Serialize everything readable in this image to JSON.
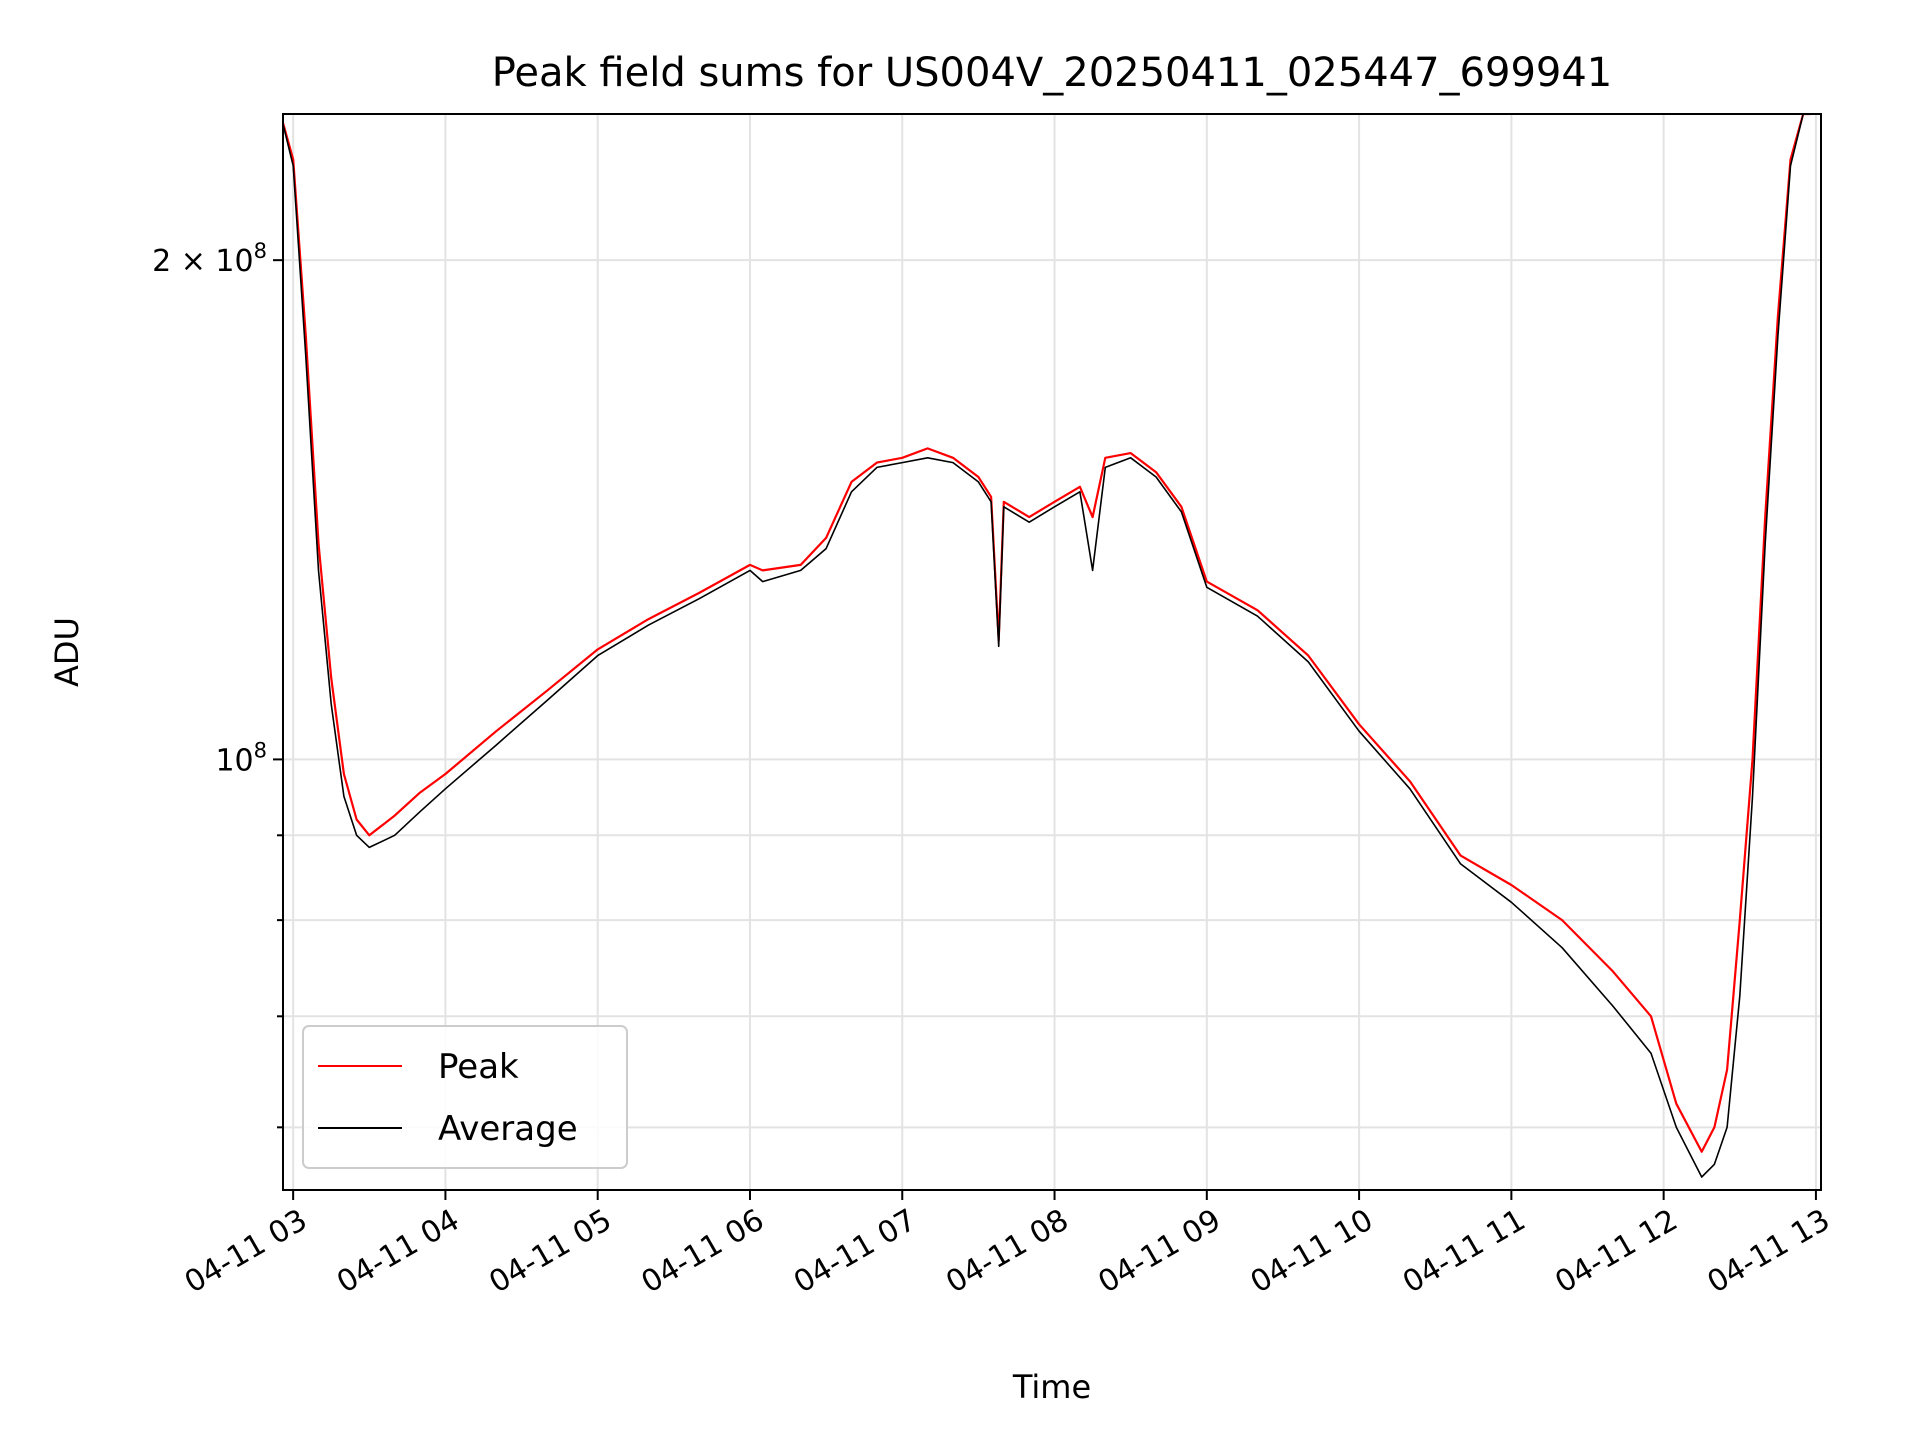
{
  "chart_data": {
    "type": "line",
    "title": "Peak field sums for US004V_20250411_025447_699941",
    "xlabel": "Time",
    "ylabel": "ADU",
    "x_ticks": [
      "04-11 03",
      "04-11 04",
      "04-11 05",
      "04-11 06",
      "04-11 07",
      "04-11 08",
      "04-11 09",
      "04-11 10",
      "04-11 11",
      "04-11 12",
      "04-11 13"
    ],
    "y_ticks": [
      {
        "value": 200000000,
        "base": "2 × 10",
        "exp": "8"
      },
      {
        "value": 100000000,
        "base": "10",
        "exp": "8"
      }
    ],
    "y_scale": "log",
    "ylim": [
      55000000,
      245000000
    ],
    "xlim": [
      "2025-04-11 02:56",
      "2025-04-11 13:02"
    ],
    "grid": true,
    "legend_position": "lower-left",
    "colors": {
      "Peak": "#ff0000",
      "Average": "#000000"
    },
    "series": [
      {
        "name": "Peak",
        "x": [
          "2025-04-11 02:55",
          "2025-04-11 03:00",
          "2025-04-11 03:05",
          "2025-04-11 03:10",
          "2025-04-11 03:15",
          "2025-04-11 03:20",
          "2025-04-11 03:25",
          "2025-04-11 03:30",
          "2025-04-11 03:40",
          "2025-04-11 03:50",
          "2025-04-11 04:00",
          "2025-04-11 04:20",
          "2025-04-11 04:40",
          "2025-04-11 05:00",
          "2025-04-11 05:20",
          "2025-04-11 05:40",
          "2025-04-11 06:00",
          "2025-04-11 06:05",
          "2025-04-11 06:20",
          "2025-04-11 06:30",
          "2025-04-11 06:40",
          "2025-04-11 06:50",
          "2025-04-11 07:00",
          "2025-04-11 07:10",
          "2025-04-11 07:20",
          "2025-04-11 07:30",
          "2025-04-11 07:35",
          "2025-04-11 07:38",
          "2025-04-11 07:40",
          "2025-04-11 07:50",
          "2025-04-11 08:00",
          "2025-04-11 08:10",
          "2025-04-11 08:15",
          "2025-04-11 08:20",
          "2025-04-11 08:30",
          "2025-04-11 08:40",
          "2025-04-11 08:50",
          "2025-04-11 09:00",
          "2025-04-11 09:20",
          "2025-04-11 09:40",
          "2025-04-11 10:00",
          "2025-04-11 10:20",
          "2025-04-11 10:40",
          "2025-04-11 11:00",
          "2025-04-11 11:20",
          "2025-04-11 11:40",
          "2025-04-11 11:55",
          "2025-04-11 12:05",
          "2025-04-11 12:15",
          "2025-04-11 12:20",
          "2025-04-11 12:25",
          "2025-04-11 12:30",
          "2025-04-11 12:35",
          "2025-04-11 12:40",
          "2025-04-11 12:45",
          "2025-04-11 12:50",
          "2025-04-11 12:55",
          "2025-04-11 12:58"
        ],
        "y": [
          245000000,
          230000000,
          180000000,
          135000000,
          112000000,
          98000000,
          92000000,
          90000000,
          92500000,
          95500000,
          98000000,
          104000000,
          110000000,
          116500000,
          121500000,
          126000000,
          131000000,
          130000000,
          131000000,
          136000000,
          147000000,
          151000000,
          152000000,
          154000000,
          152000000,
          148000000,
          144000000,
          118000000,
          143000000,
          140000000,
          143000000,
          146000000,
          140000000,
          152000000,
          153000000,
          149000000,
          142000000,
          128000000,
          123000000,
          115500000,
          105000000,
          97000000,
          87500000,
          84000000,
          80000000,
          74500000,
          70000000,
          62000000,
          58000000,
          60000000,
          65000000,
          80000000,
          100000000,
          140000000,
          185000000,
          230000000,
          245000000,
          245000000
        ]
      },
      {
        "name": "Average",
        "x": [
          "2025-04-11 02:55",
          "2025-04-11 03:00",
          "2025-04-11 03:05",
          "2025-04-11 03:10",
          "2025-04-11 03:15",
          "2025-04-11 03:20",
          "2025-04-11 03:25",
          "2025-04-11 03:30",
          "2025-04-11 03:40",
          "2025-04-11 03:50",
          "2025-04-11 04:00",
          "2025-04-11 04:20",
          "2025-04-11 04:40",
          "2025-04-11 05:00",
          "2025-04-11 05:20",
          "2025-04-11 05:40",
          "2025-04-11 06:00",
          "2025-04-11 06:05",
          "2025-04-11 06:20",
          "2025-04-11 06:30",
          "2025-04-11 06:40",
          "2025-04-11 06:50",
          "2025-04-11 07:00",
          "2025-04-11 07:10",
          "2025-04-11 07:20",
          "2025-04-11 07:30",
          "2025-04-11 07:35",
          "2025-04-11 07:38",
          "2025-04-11 07:40",
          "2025-04-11 07:50",
          "2025-04-11 08:00",
          "2025-04-11 08:10",
          "2025-04-11 08:15",
          "2025-04-11 08:20",
          "2025-04-11 08:30",
          "2025-04-11 08:40",
          "2025-04-11 08:50",
          "2025-04-11 09:00",
          "2025-04-11 09:20",
          "2025-04-11 09:40",
          "2025-04-11 10:00",
          "2025-04-11 10:20",
          "2025-04-11 10:40",
          "2025-04-11 11:00",
          "2025-04-11 11:20",
          "2025-04-11 11:40",
          "2025-04-11 11:55",
          "2025-04-11 12:05",
          "2025-04-11 12:15",
          "2025-04-11 12:20",
          "2025-04-11 12:25",
          "2025-04-11 12:30",
          "2025-04-11 12:35",
          "2025-04-11 12:40",
          "2025-04-11 12:45",
          "2025-04-11 12:50",
          "2025-04-11 12:55",
          "2025-04-11 12:58"
        ],
        "y": [
          245000000,
          228000000,
          175000000,
          130000000,
          108000000,
          95000000,
          90000000,
          88500000,
          90000000,
          93000000,
          96000000,
          102000000,
          108500000,
          115500000,
          120500000,
          125000000,
          130000000,
          128000000,
          130000000,
          134000000,
          145000000,
          150000000,
          151000000,
          152000000,
          151000000,
          147000000,
          143000000,
          117000000,
          142000000,
          139000000,
          142000000,
          145000000,
          130000000,
          150000000,
          152000000,
          148000000,
          141000000,
          127000000,
          122000000,
          114500000,
          104000000,
          96000000,
          86500000,
          82000000,
          77000000,
          71000000,
          66500000,
          60000000,
          56000000,
          57000000,
          60000000,
          72000000,
          95000000,
          135000000,
          180000000,
          228000000,
          245000000,
          245000000
        ]
      }
    ]
  }
}
